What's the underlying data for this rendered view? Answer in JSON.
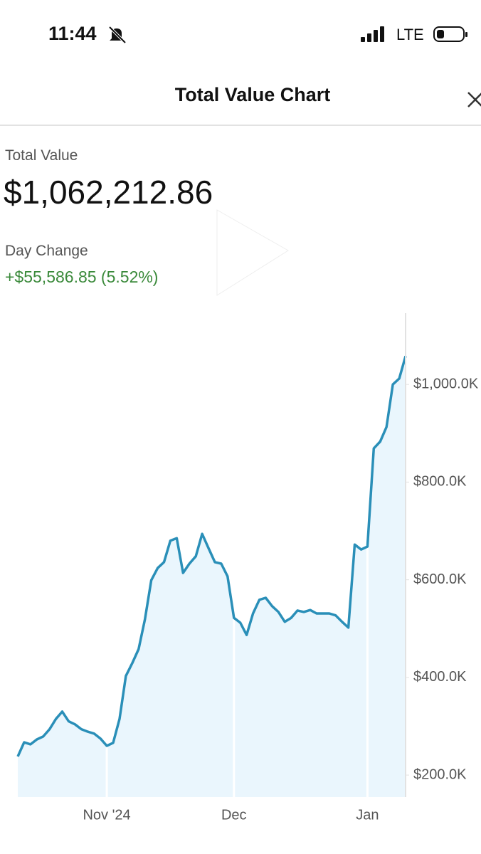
{
  "status_bar": {
    "time": "11:44",
    "network": "LTE"
  },
  "header": {
    "title": "Total Value Chart"
  },
  "summary": {
    "total_label": "Total Value",
    "total_value": "$1,062,212.86",
    "change_label": "Day Change",
    "change_value": "+$55,586.85 (5.52%)"
  },
  "chart_data": {
    "type": "area",
    "categories": [
      null,
      null,
      null,
      null,
      null,
      null,
      null,
      null,
      null,
      null,
      null,
      null,
      null,
      null,
      "Nov '24",
      null,
      null,
      null,
      null,
      null,
      null,
      null,
      null,
      null,
      null,
      null,
      null,
      null,
      null,
      null,
      null,
      null,
      null,
      null,
      "Dec",
      null,
      null,
      null,
      null,
      null,
      null,
      null,
      null,
      null,
      null,
      null,
      null,
      null,
      null,
      null,
      null,
      null,
      null,
      null,
      null,
      "Jan",
      null,
      null,
      null,
      null,
      null,
      null
    ],
    "values": [
      238000,
      267000,
      263000,
      273000,
      279000,
      294000,
      315000,
      330000,
      310000,
      304000,
      294000,
      289000,
      285000,
      275000,
      260000,
      266000,
      315000,
      403000,
      429000,
      458000,
      519000,
      599000,
      624000,
      636000,
      680000,
      685000,
      614000,
      633000,
      648000,
      694000,
      665000,
      636000,
      633000,
      607000,
      522000,
      512000,
      487000,
      531000,
      559000,
      563000,
      546000,
      534000,
      514000,
      522000,
      537000,
      534000,
      538000,
      531000,
      531000,
      531000,
      527000,
      514000,
      502000,
      672000,
      662000,
      668000,
      869000,
      883000,
      913000,
      1000000,
      1012000,
      1058000
    ],
    "color": "#2a8fb8",
    "fill_color": "#eaf6fd",
    "ylim": [
      155000,
      1146000
    ],
    "yticks": [
      {
        "value": 200000,
        "label": "$200.0K"
      },
      {
        "value": 400000,
        "label": "$400.0K"
      },
      {
        "value": 600000,
        "label": "$600.0K"
      },
      {
        "value": 800000,
        "label": "$800.0K"
      },
      {
        "value": 1000000,
        "label": "$1,000.0K"
      }
    ],
    "y_axis_side": "right",
    "x_grid": true
  }
}
